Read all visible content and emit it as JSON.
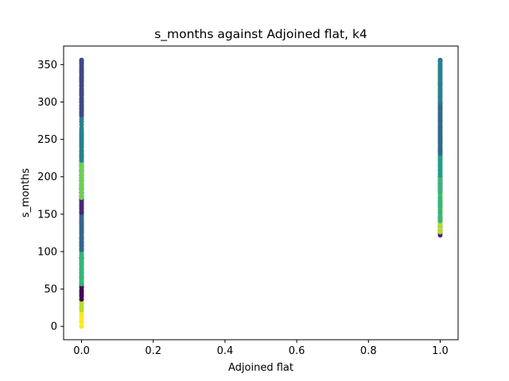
{
  "chart_data": {
    "type": "scatter",
    "title": "s_months against Adjoined flat, k4",
    "xlabel": "Adjoined flat",
    "ylabel": "s_months",
    "xlim": [
      -0.05,
      1.05
    ],
    "ylim": [
      -17.8,
      374.8
    ],
    "xticks": [
      0.0,
      0.2,
      0.4,
      0.6,
      0.8,
      1.0
    ],
    "xtick_labels": [
      "0.0",
      "0.2",
      "0.4",
      "0.6",
      "0.8",
      "1.0"
    ],
    "yticks": [
      0,
      50,
      100,
      150,
      200,
      250,
      300,
      350
    ],
    "ytick_labels": [
      "0",
      "50",
      "100",
      "150",
      "200",
      "250",
      "300",
      "350"
    ],
    "grid": false,
    "legend": "none",
    "colormap": "viridis",
    "series": [
      {
        "x_value": 0,
        "segments": [
          {
            "y_min": 0,
            "y_max": 35,
            "color": "#fde725"
          },
          {
            "y_min": 20,
            "y_max": 50,
            "color": "#b5de2b"
          },
          {
            "y_min": 35,
            "y_max": 120,
            "color": "#440154"
          },
          {
            "y_min": 55,
            "y_max": 160,
            "color": "#35b779"
          },
          {
            "y_min": 100,
            "y_max": 260,
            "color": "#31688e"
          },
          {
            "y_min": 150,
            "y_max": 230,
            "color": "#482878"
          },
          {
            "y_min": 170,
            "y_max": 260,
            "color": "#6ece58"
          },
          {
            "y_min": 220,
            "y_max": 356,
            "color": "#26828e"
          },
          {
            "y_min": 280,
            "y_max": 356,
            "color": "#3e4989"
          }
        ]
      },
      {
        "x_value": 1,
        "segments": [
          {
            "y_min": 120,
            "y_max": 200,
            "color": "#482878"
          },
          {
            "y_min": 125,
            "y_max": 180,
            "color": "#b5de2b"
          },
          {
            "y_min": 140,
            "y_max": 240,
            "color": "#35b779"
          },
          {
            "y_min": 200,
            "y_max": 300,
            "color": "#1f9e89"
          },
          {
            "y_min": 230,
            "y_max": 356,
            "color": "#31688e"
          },
          {
            "y_min": 300,
            "y_max": 356,
            "color": "#26828e"
          }
        ]
      }
    ]
  }
}
